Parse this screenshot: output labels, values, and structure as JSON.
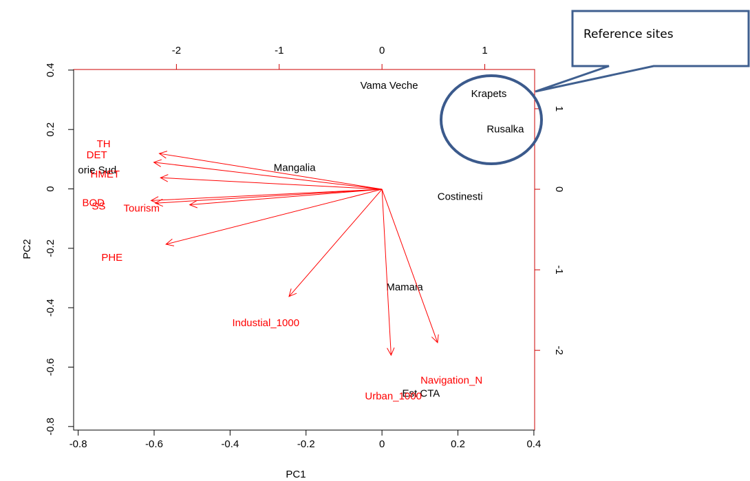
{
  "chart_data": {
    "type": "biplot",
    "xlabel": "PC1",
    "ylabel": "PC2",
    "xlim": [
      -0.812,
      0.402
    ],
    "ylim": [
      -0.812,
      0.402
    ],
    "xticks": [
      -0.8,
      -0.6,
      -0.4,
      -0.2,
      0.0,
      0.2,
      0.4
    ],
    "yticks": [
      -0.8,
      -0.6,
      -0.4,
      -0.2,
      0.0,
      0.2,
      0.4
    ],
    "x2lim": [
      -3.0,
      1.485
    ],
    "y2lim": [
      -2.99,
      1.487
    ],
    "x2ticks": [
      -2,
      -1,
      0,
      1
    ],
    "y2ticks": [
      -2,
      -1,
      0,
      1
    ],
    "sites": {
      "color": "#000000",
      "labels": [
        "Vama Veche",
        "Krapets",
        "Rusalka",
        "orie Sud",
        "Mangalia",
        "Costinesti",
        "Mamaia",
        "Est CTA"
      ],
      "x": [
        0.07,
        1.04,
        1.2,
        -2.77,
        -0.85,
        0.76,
        0.22,
        0.38
      ],
      "y": [
        1.28,
        1.18,
        0.74,
        0.23,
        0.26,
        -0.1,
        -1.22,
        -2.54
      ]
    },
    "variables": {
      "color": "#ff0000",
      "labels": [
        "TH",
        "DET",
        "HMET",
        "BOD",
        "SS",
        "Tourism",
        "PHE",
        "Industial_1000",
        "Urban_1000",
        "Navigation_N"
      ],
      "x": [
        -0.733,
        -0.751,
        -0.729,
        -0.76,
        -0.746,
        -0.633,
        -0.711,
        -0.306,
        0.03,
        0.183
      ],
      "y": [
        0.149,
        0.112,
        0.047,
        -0.049,
        -0.06,
        -0.067,
        -0.233,
        -0.453,
        -0.7,
        -0.647
      ]
    },
    "annotation": "Reference sites"
  }
}
